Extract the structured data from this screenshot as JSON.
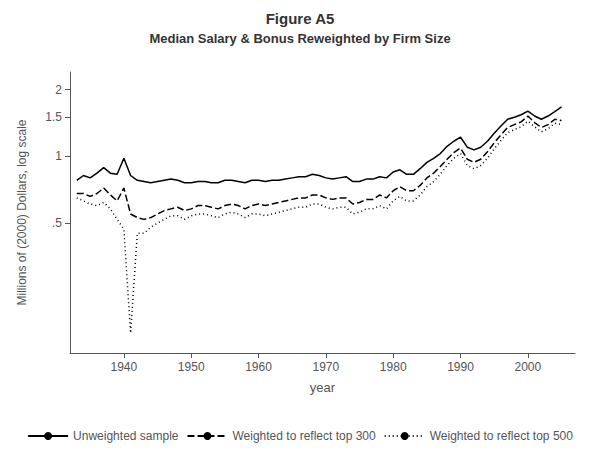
{
  "chart_data": {
    "type": "line",
    "title": "Figure A5",
    "subtitle": "Median Salary & Bonus Reweighted by Firm Size",
    "xlabel": "year",
    "ylabel": "Millions of (2000) Dollars, log scale",
    "log": "y",
    "grid": false,
    "legend": "bottom",
    "xlim": [
      1932,
      2007
    ],
    "xticks": [
      1940,
      1950,
      1960,
      1970,
      1980,
      1990,
      2000
    ],
    "ylim": [
      0.13,
      2.4
    ],
    "yticks": [
      {
        "value": 0.5,
        "label": ".5"
      },
      1,
      1.5,
      2
    ],
    "x": [
      1933,
      1934,
      1935,
      1936,
      1937,
      1938,
      1939,
      1940,
      1941,
      1942,
      1943,
      1944,
      1945,
      1946,
      1947,
      1948,
      1949,
      1950,
      1951,
      1952,
      1953,
      1954,
      1955,
      1956,
      1957,
      1958,
      1959,
      1960,
      1961,
      1962,
      1963,
      1964,
      1965,
      1966,
      1967,
      1968,
      1969,
      1970,
      1971,
      1972,
      1973,
      1974,
      1975,
      1976,
      1977,
      1978,
      1979,
      1980,
      1981,
      1982,
      1983,
      1984,
      1985,
      1986,
      1987,
      1988,
      1989,
      1990,
      1991,
      1992,
      1993,
      1994,
      1995,
      1996,
      1997,
      1998,
      1999,
      2000,
      2001,
      2002,
      2003,
      2004,
      2005
    ],
    "series": [
      {
        "name": "Unweighted sample",
        "color": "#000000",
        "line_style": "solid",
        "values": [
          0.78,
          0.82,
          0.8,
          0.84,
          0.89,
          0.84,
          0.83,
          0.98,
          0.82,
          0.78,
          0.77,
          0.76,
          0.77,
          0.78,
          0.79,
          0.78,
          0.76,
          0.76,
          0.77,
          0.77,
          0.76,
          0.76,
          0.78,
          0.78,
          0.77,
          0.76,
          0.78,
          0.78,
          0.77,
          0.78,
          0.78,
          0.79,
          0.8,
          0.81,
          0.81,
          0.83,
          0.82,
          0.8,
          0.79,
          0.8,
          0.81,
          0.77,
          0.77,
          0.79,
          0.79,
          0.81,
          0.8,
          0.85,
          0.87,
          0.83,
          0.83,
          0.88,
          0.94,
          0.98,
          1.03,
          1.11,
          1.17,
          1.22,
          1.1,
          1.07,
          1.1,
          1.17,
          1.27,
          1.37,
          1.47,
          1.5,
          1.54,
          1.6,
          1.52,
          1.47,
          1.52,
          1.59,
          1.67
        ]
      },
      {
        "name": "Weighted to reflect top 300",
        "color": "#000000",
        "line_style": "dashed",
        "values": [
          0.68,
          0.68,
          0.66,
          0.68,
          0.72,
          0.67,
          0.63,
          0.72,
          0.55,
          0.53,
          0.52,
          0.53,
          0.55,
          0.57,
          0.58,
          0.59,
          0.57,
          0.58,
          0.6,
          0.6,
          0.59,
          0.58,
          0.6,
          0.61,
          0.6,
          0.58,
          0.6,
          0.61,
          0.6,
          0.61,
          0.62,
          0.63,
          0.64,
          0.65,
          0.65,
          0.67,
          0.67,
          0.65,
          0.64,
          0.65,
          0.65,
          0.61,
          0.62,
          0.64,
          0.64,
          0.67,
          0.65,
          0.7,
          0.73,
          0.7,
          0.7,
          0.74,
          0.8,
          0.84,
          0.9,
          0.97,
          1.04,
          1.09,
          0.97,
          0.94,
          0.97,
          1.05,
          1.15,
          1.25,
          1.35,
          1.39,
          1.43,
          1.52,
          1.42,
          1.35,
          1.39,
          1.47,
          1.45
        ]
      },
      {
        "name": "Weighted to reflect top 500",
        "color": "#000000",
        "line_style": "dotted",
        "values": [
          0.65,
          0.63,
          0.61,
          0.6,
          0.62,
          0.58,
          0.52,
          0.47,
          0.16,
          0.45,
          0.45,
          0.48,
          0.5,
          0.52,
          0.54,
          0.54,
          0.52,
          0.54,
          0.55,
          0.55,
          0.54,
          0.53,
          0.55,
          0.56,
          0.55,
          0.53,
          0.55,
          0.55,
          0.54,
          0.55,
          0.56,
          0.57,
          0.58,
          0.59,
          0.59,
          0.61,
          0.61,
          0.59,
          0.58,
          0.59,
          0.59,
          0.55,
          0.56,
          0.58,
          0.58,
          0.6,
          0.58,
          0.63,
          0.66,
          0.63,
          0.63,
          0.67,
          0.73,
          0.77,
          0.83,
          0.91,
          0.98,
          1.03,
          0.91,
          0.88,
          0.91,
          0.98,
          1.08,
          1.18,
          1.28,
          1.32,
          1.36,
          1.44,
          1.36,
          1.29,
          1.33,
          1.41,
          1.39
        ]
      }
    ]
  }
}
